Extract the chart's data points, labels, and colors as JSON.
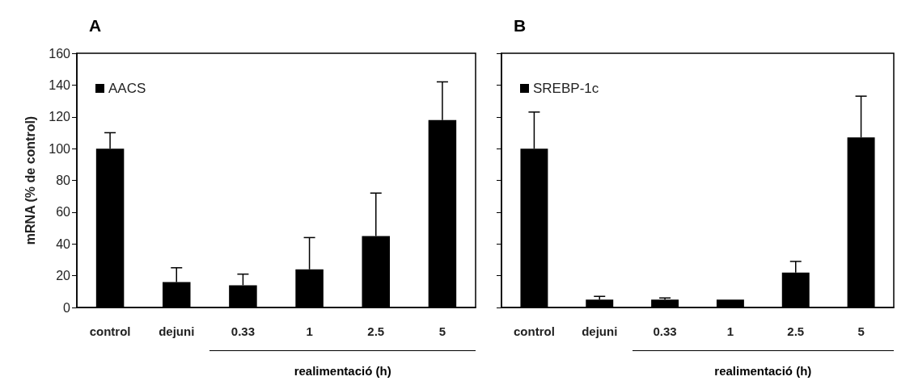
{
  "chart_data": [
    {
      "type": "bar",
      "title": "A",
      "ylabel": "mRNA (% de control)",
      "xlabel": "realimentació (h)",
      "categories": [
        "control",
        "dejuni",
        "0.33",
        "1",
        "2.5",
        "5"
      ],
      "series": [
        {
          "name": "AACS",
          "color": "#000000",
          "values": [
            100,
            16,
            14,
            24,
            45,
            118
          ],
          "errors": [
            10,
            9,
            7,
            20,
            27,
            24
          ]
        }
      ],
      "ylim": [
        0,
        160
      ],
      "yticks": [
        0,
        20,
        40,
        60,
        80,
        100,
        120,
        140,
        160
      ],
      "grid": false,
      "legend": "top left"
    },
    {
      "type": "bar",
      "title": "B",
      "xlabel": "realimentació (h)",
      "categories": [
        "control",
        "dejuni",
        "0.33",
        "1",
        "2.5",
        "5"
      ],
      "series": [
        {
          "name": "SREBP-1c",
          "color": "#000000",
          "values": [
            100,
            5,
            5,
            5,
            22,
            107
          ],
          "errors": [
            23,
            2,
            1,
            null,
            7,
            26
          ]
        }
      ],
      "ylim": [
        0,
        160
      ],
      "yticks": [
        0,
        20,
        40,
        60,
        80,
        100,
        120,
        140,
        160
      ],
      "grid": false,
      "legend": "top left",
      "tick_labels": "x"
    }
  ]
}
